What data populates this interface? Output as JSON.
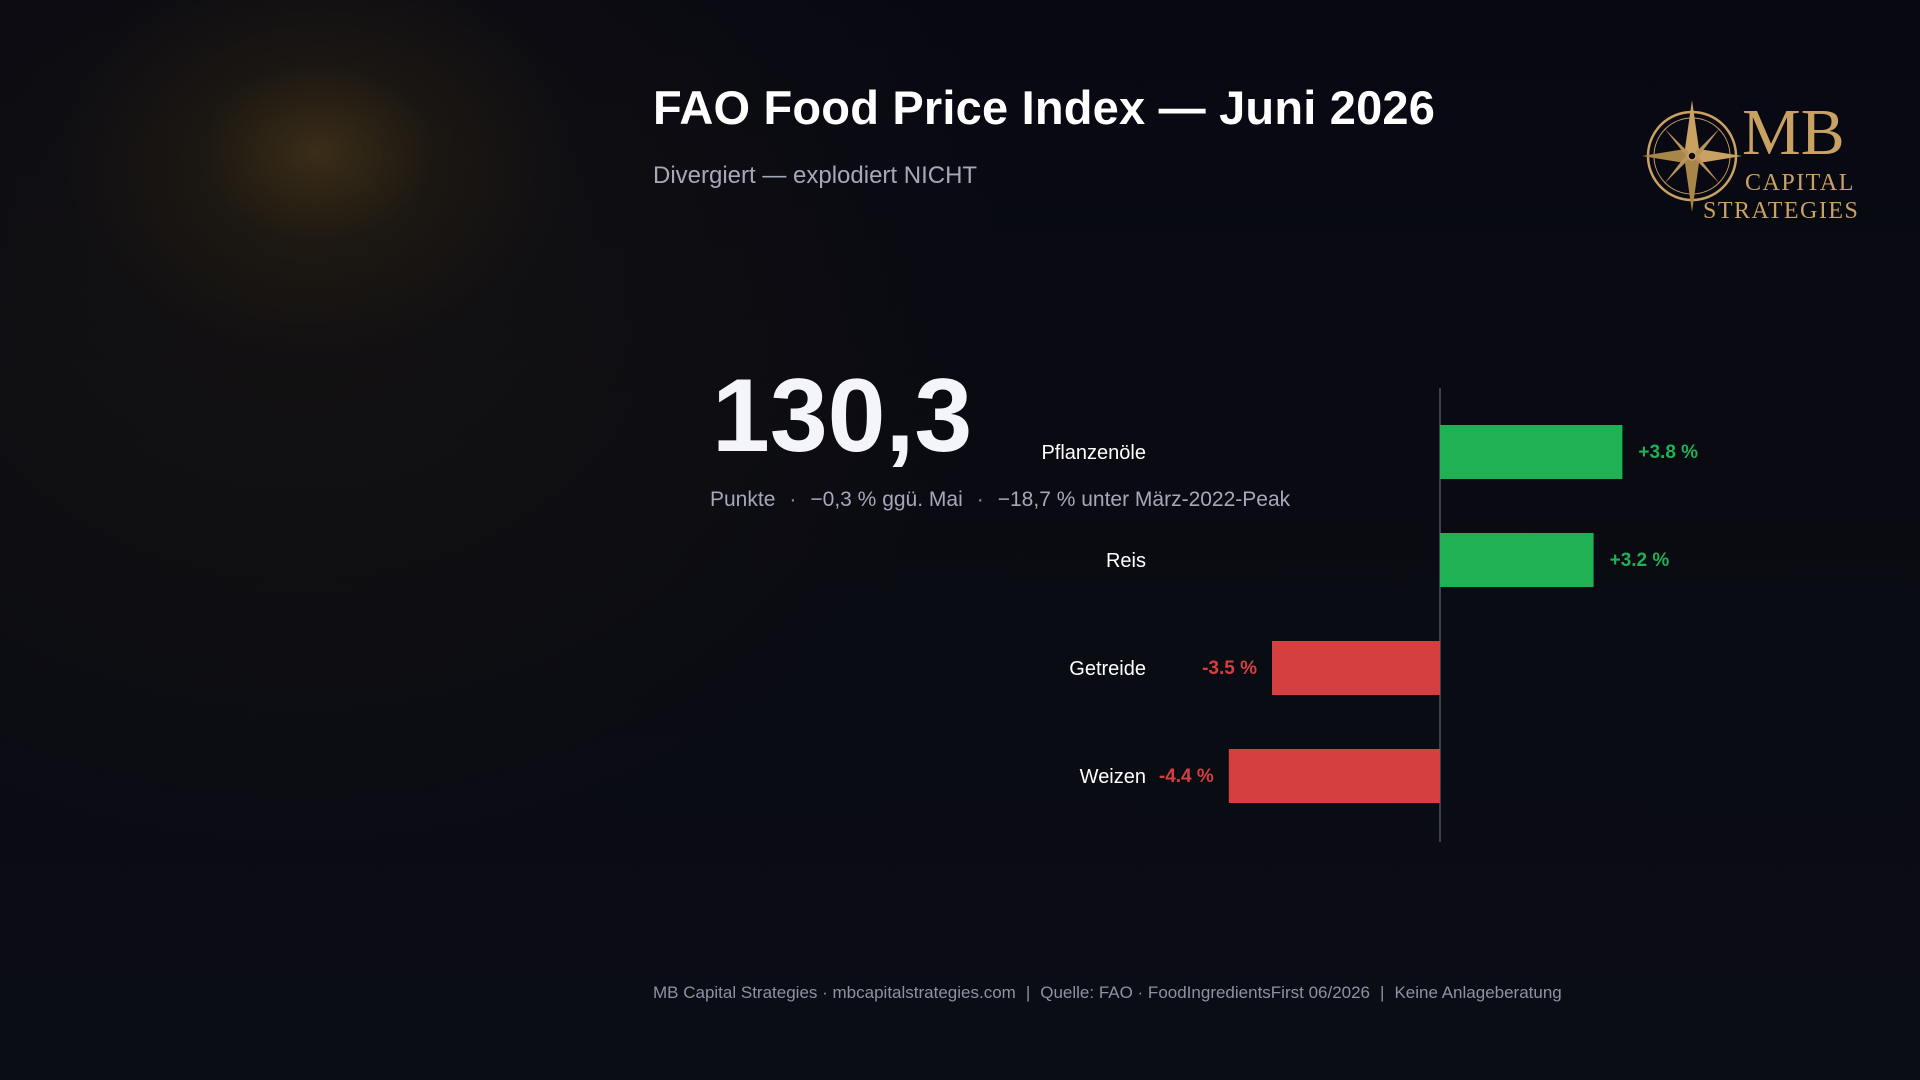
{
  "header": {
    "title": "FAO Food Price Index — Juni 2026",
    "subtitle": "Divergiert — explodiert NICHT"
  },
  "logo": {
    "icon": "compass-rose-icon",
    "line1": "MB",
    "line2": "CAPITAL",
    "line3": "STRATEGIES",
    "color": "#c9a263"
  },
  "headline": {
    "value": "130,3",
    "unit": "Punkte",
    "change_mom": "−0,3 % ggü. Mai",
    "vs_peak": "−18,7 % unter März-2022-Peak",
    "separator": "·"
  },
  "chart_data": {
    "type": "bar",
    "orientation": "horizontal",
    "categories": [
      "Pflanzenöle",
      "Reis",
      "Getreide",
      "Weizen"
    ],
    "values": [
      3.8,
      3.2,
      -3.5,
      -4.4
    ],
    "value_labels": [
      "+3.8 %",
      "+3.2 %",
      "-3.5 %",
      "-4.4 %"
    ],
    "xlim": [
      -4.4,
      3.8
    ],
    "grid": false,
    "colors": {
      "positive": "#1fb154",
      "negative": "#d63f3f",
      "axis": "#3a3f52",
      "category_label": "#ffffff"
    }
  },
  "footer": {
    "brand": "MB Capital Strategies · mbcapitalstrategies.com",
    "source": "Quelle: FAO · FoodIngredientsFirst 06/2026",
    "disclaimer": "Keine Anlageberatung",
    "separator": "|"
  }
}
